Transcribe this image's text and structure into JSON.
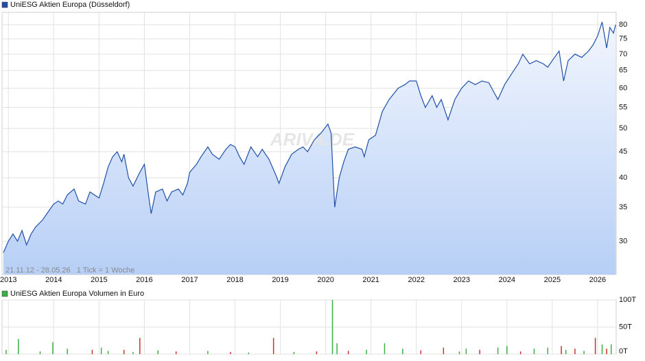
{
  "chart_data": [
    {
      "type": "line",
      "title": "UniESG Aktien Europa (Düsseldorf)",
      "annotation": "21.11.12 - 28.05.26   1 Tick = 1 Woche",
      "watermark": "ARIVA.DE",
      "color": "#1f4fa8",
      "log_scale": true,
      "grid": true,
      "xlim": [
        2012.86,
        2026.41
      ],
      "xticks": [
        2013,
        2014,
        2015,
        2016,
        2017,
        2018,
        2019,
        2020,
        2021,
        2022,
        2023,
        2024,
        2025,
        2026
      ],
      "ylim": [
        25.8,
        84.6
      ],
      "yticks": [
        30,
        35,
        40,
        45,
        50,
        55,
        60,
        65,
        70,
        75,
        80
      ],
      "x": [
        2012.89,
        2013.0,
        2013.1,
        2013.2,
        2013.3,
        2013.4,
        2013.5,
        2013.6,
        2013.75,
        2013.9,
        2014.0,
        2014.1,
        2014.2,
        2014.3,
        2014.45,
        2014.55,
        2014.7,
        2014.8,
        2014.9,
        2015.0,
        2015.1,
        2015.2,
        2015.3,
        2015.4,
        2015.5,
        2015.55,
        2015.65,
        2015.75,
        2015.9,
        2016.0,
        2016.1,
        2016.15,
        2016.25,
        2016.4,
        2016.5,
        2016.6,
        2016.75,
        2016.85,
        2016.95,
        2017.0,
        2017.15,
        2017.25,
        2017.4,
        2017.5,
        2017.65,
        2017.8,
        2017.9,
        2018.0,
        2018.1,
        2018.2,
        2018.35,
        2018.5,
        2018.6,
        2018.75,
        2018.9,
        2018.97,
        2019.1,
        2019.25,
        2019.4,
        2019.5,
        2019.6,
        2019.75,
        2019.9,
        2020.05,
        2020.12,
        2020.2,
        2020.3,
        2020.4,
        2020.5,
        2020.65,
        2020.8,
        2020.85,
        2020.95,
        2021.1,
        2021.25,
        2021.4,
        2021.6,
        2021.75,
        2021.85,
        2022.0,
        2022.1,
        2022.2,
        2022.35,
        2022.45,
        2022.55,
        2022.7,
        2022.85,
        2023.0,
        2023.15,
        2023.3,
        2023.45,
        2023.6,
        2023.8,
        2023.95,
        2024.1,
        2024.25,
        2024.35,
        2024.5,
        2024.65,
        2024.8,
        2024.9,
        2025.0,
        2025.15,
        2025.25,
        2025.35,
        2025.5,
        2025.65,
        2025.8,
        2025.9,
        2026.0,
        2026.1,
        2026.2,
        2026.27,
        2026.35,
        2026.4
      ],
      "values": [
        28.5,
        30,
        31,
        30,
        31.5,
        29.5,
        31,
        32,
        33,
        34.5,
        35.5,
        36,
        35.5,
        37,
        38,
        36,
        35.5,
        37.5,
        37,
        36.5,
        39,
        42,
        44,
        45,
        43,
        44.5,
        40,
        38.5,
        41,
        42.5,
        36.5,
        34,
        37.5,
        38,
        36,
        37.5,
        38,
        37,
        39,
        41,
        42.5,
        44,
        46,
        44.5,
        43.5,
        45.5,
        46.5,
        46,
        44,
        42.5,
        46,
        44,
        45.5,
        43.5,
        40.5,
        39,
        42,
        44.5,
        45.5,
        46,
        45,
        47.5,
        49,
        51,
        49,
        35,
        40,
        43,
        45.5,
        46,
        45.5,
        44,
        47.5,
        48.5,
        54,
        57,
        60,
        61,
        62,
        62,
        58,
        55,
        58,
        55,
        57,
        52,
        57,
        60,
        62,
        61,
        62,
        61.5,
        57,
        61,
        64,
        67,
        70,
        67,
        68,
        67,
        66,
        68,
        71,
        62,
        68,
        70,
        69,
        71,
        73,
        76,
        81,
        72,
        79,
        77,
        80
      ]
    },
    {
      "type": "bar",
      "title": "UniESG Aktien Europa Volumen in Euro",
      "color": "#3cb043",
      "grid": true,
      "xlim": [
        2012.86,
        2026.41
      ],
      "xticks": [
        2013,
        2014,
        2015,
        2016,
        2017,
        2018,
        2019,
        2020,
        2021,
        2022,
        2023,
        2024,
        2025,
        2026
      ],
      "ylim": [
        0,
        100
      ],
      "yticks": [
        {
          "value": 0,
          "label": "0T"
        },
        {
          "value": 50,
          "label": "50T"
        },
        {
          "value": 100,
          "label": "100T"
        }
      ],
      "x": [
        2012.95,
        2013.22,
        2013.7,
        2013.98,
        2014.3,
        2014.85,
        2015.05,
        2015.2,
        2015.55,
        2015.75,
        2015.9,
        2016.3,
        2016.7,
        2017.4,
        2017.9,
        2018.3,
        2018.85,
        2019.3,
        2019.8,
        2020.15,
        2020.25,
        2020.5,
        2020.9,
        2021.3,
        2021.7,
        2022.1,
        2022.6,
        2022.95,
        2023.1,
        2023.4,
        2023.8,
        2024.0,
        2024.3,
        2024.6,
        2024.9,
        2025.2,
        2025.3,
        2025.5,
        2025.7,
        2025.95,
        2026.1,
        2026.2,
        2026.3
      ],
      "values": [
        8,
        28,
        5,
        22,
        10,
        8,
        12,
        6,
        8,
        4,
        30,
        7,
        5,
        6,
        4,
        3,
        30,
        4,
        5,
        100,
        20,
        6,
        8,
        20,
        10,
        7,
        12,
        5,
        10,
        8,
        12,
        15,
        5,
        10,
        12,
        15,
        8,
        10,
        6,
        30,
        18,
        10,
        18
      ],
      "colors": [
        "#3cb043",
        "#3cb043",
        "#3cb043",
        "#3cb043",
        "#3cb043",
        "#c83232",
        "#3cb043",
        "#3cb043",
        "#c83232",
        "#3cb043",
        "#c83232",
        "#3cb043",
        "#c83232",
        "#3cb043",
        "#c83232",
        "#3cb043",
        "#c83232",
        "#3cb043",
        "#c83232",
        "#3cb043",
        "#3cb043",
        "#c83232",
        "#3cb043",
        "#3cb043",
        "#3cb043",
        "#c83232",
        "#c83232",
        "#3cb043",
        "#3cb043",
        "#c83232",
        "#3cb043",
        "#3cb043",
        "#c83232",
        "#3cb043",
        "#3cb043",
        "#c83232",
        "#3cb043",
        "#c83232",
        "#3cb043",
        "#c83232",
        "#3cb043",
        "#c83232",
        "#3cb043"
      ]
    }
  ]
}
